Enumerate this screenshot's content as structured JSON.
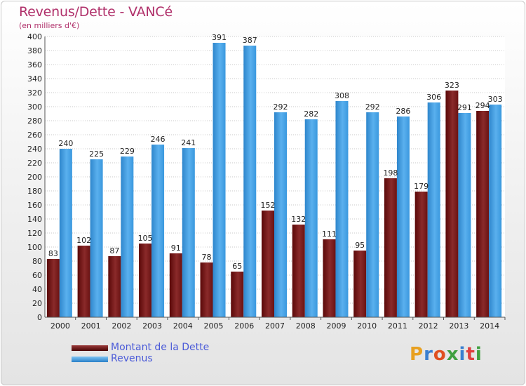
{
  "header": {
    "title": "Revenus/Dette - VANCé",
    "subtitle": "(en milliers d'€)"
  },
  "legend": {
    "items": [
      {
        "label": "Montant de la Dette",
        "color": "#6b1111"
      },
      {
        "label": "Revenus",
        "color": "#3a98de"
      }
    ]
  },
  "logo": {
    "text": "Proxiti",
    "colors": [
      "#e8a020",
      "#3a7fd0",
      "#e05020",
      "#40a040",
      "#3a7fd0",
      "#e04040",
      "#40a040"
    ]
  },
  "chart_data": {
    "type": "bar",
    "title": "Revenus/Dette - VANCé",
    "subtitle": "(en milliers d'€)",
    "categories": [
      "2000",
      "2001",
      "2002",
      "2003",
      "2004",
      "2005",
      "2006",
      "2007",
      "2008",
      "2009",
      "2010",
      "2011",
      "2012",
      "2013",
      "2014"
    ],
    "series": [
      {
        "name": "Montant de la Dette",
        "color": "#7a1a1a",
        "values": [
          83,
          102,
          87,
          105,
          91,
          78,
          65,
          152,
          132,
          111,
          95,
          198,
          179,
          323,
          294
        ]
      },
      {
        "name": "Revenus",
        "color": "#3a98de",
        "values": [
          240,
          225,
          229,
          246,
          241,
          391,
          387,
          292,
          282,
          308,
          292,
          286,
          306,
          291,
          303
        ]
      }
    ],
    "ylim": [
      0,
      400
    ],
    "yticks": [
      0,
      20,
      40,
      60,
      80,
      100,
      120,
      140,
      160,
      180,
      200,
      220,
      240,
      260,
      280,
      300,
      320,
      340,
      360,
      380,
      400
    ],
    "grid": true,
    "legend_position": "bottom-left"
  }
}
